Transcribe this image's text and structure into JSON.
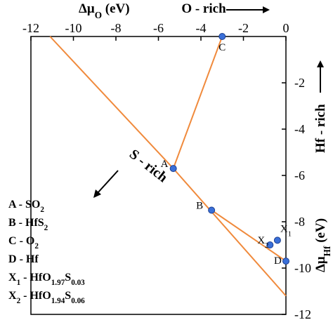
{
  "chart_data": {
    "type": "line",
    "title": "",
    "xaxis": {
      "label_main": "Δμ",
      "label_sub": "O",
      "label_unit": "(eV)",
      "position": "top",
      "range": [
        -12,
        0
      ],
      "ticks": [
        -12,
        -10,
        -8,
        -6,
        -4,
        -2,
        0
      ],
      "tick_labels": [
        "-12",
        "-10",
        "-8",
        "-6",
        "-4",
        "-2",
        "0"
      ]
    },
    "yaxis": {
      "label_main": "Δμ",
      "label_sub": "Hf",
      "label_unit": "(eV)",
      "position": "right",
      "range": [
        -12,
        0
      ],
      "ticks": [
        -2,
        -4,
        -6,
        -8,
        -10,
        -12
      ],
      "tick_labels": [
        "-2",
        "-4",
        "-6",
        "-8",
        "-10",
        "-12"
      ]
    },
    "line_color": "#f08a3c",
    "marker_color": "#3a6fd8",
    "lines": [
      {
        "x": [
          -11.1,
          -5.3
        ],
        "y": [
          0.0,
          -5.7
        ]
      },
      {
        "x": [
          -5.3,
          -3.0
        ],
        "y": [
          -5.7,
          0.0
        ]
      },
      {
        "x": [
          -5.3,
          0.0
        ],
        "y": [
          -5.7,
          -11.2
        ]
      },
      {
        "x": [
          -3.5,
          0.0
        ],
        "y": [
          -7.5,
          -9.7
        ]
      }
    ],
    "points": [
      {
        "label": "A",
        "x": -5.3,
        "y": -5.7
      },
      {
        "label": "B",
        "x": -3.5,
        "y": -7.5
      },
      {
        "label": "C",
        "x": -3.0,
        "y": 0.0
      },
      {
        "label": "D",
        "x": 0.0,
        "y": -9.7
      },
      {
        "label": "X",
        "sub": "1",
        "x": -0.4,
        "y": -8.8
      },
      {
        "label": "X",
        "sub": "2",
        "x": -0.75,
        "y": -9.0
      }
    ],
    "annotations": {
      "o_rich": "O - rich",
      "hf_rich": "Hf - rich",
      "s_rich": "S - rich"
    },
    "legend": [
      {
        "key": "A",
        "label_parts": [
          [
            "SO",
            ""
          ],
          [
            "2",
            "sub"
          ]
        ]
      },
      {
        "key": "B",
        "label_parts": [
          [
            "HfS",
            ""
          ],
          [
            "2",
            "sub"
          ]
        ]
      },
      {
        "key": "C",
        "label_parts": [
          [
            "O",
            ""
          ],
          [
            "2",
            "sub"
          ]
        ]
      },
      {
        "key": "D",
        "label_parts": [
          [
            "Hf",
            ""
          ]
        ]
      },
      {
        "key": "X",
        "key_sub": "1",
        "label_parts": [
          [
            "HfO",
            ""
          ],
          [
            "1.97",
            "sub"
          ],
          [
            "S",
            ""
          ],
          [
            "0.03",
            "sub"
          ]
        ]
      },
      {
        "key": "X",
        "key_sub": "2",
        "label_parts": [
          [
            "HfO",
            ""
          ],
          [
            "1.94",
            "sub"
          ],
          [
            "S",
            ""
          ],
          [
            "0.06",
            "sub"
          ]
        ]
      }
    ],
    "legend_position": "bottom-left"
  }
}
